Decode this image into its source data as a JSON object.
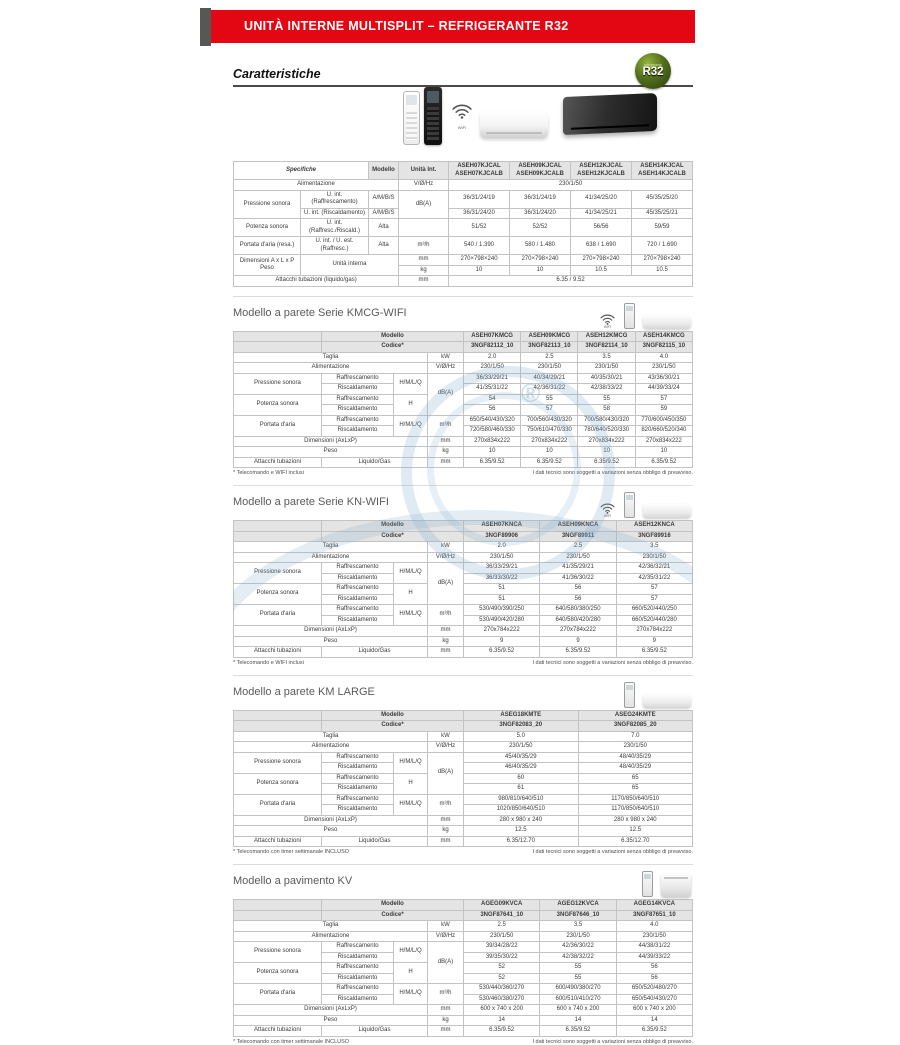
{
  "banner": {
    "title": "UNITÀ INTERNE MULTISPLIT – REFRIGERANTE R32"
  },
  "page": {
    "heading": "Caratteristiche"
  },
  "badge": {
    "small": "refrigerante",
    "big": "R32",
    "color": "#4a6418"
  },
  "strings": {
    "wifi_label": "WIFI",
    "disclaimer": "I dati tecnici sono soggetti a variazioni senza obbligo di preavviso."
  },
  "colors": {
    "banner_red": "#e30613",
    "model_red": "#b50d1c",
    "separator_red": "#a81320",
    "header_gray": "#e4e4e4"
  },
  "specifiche": {
    "title": "Specifiche",
    "labels": {
      "modello": "Modello",
      "unita": "Unità Int.",
      "alimentazione": "Alimentazione",
      "vhz": "V/Ø/Hz",
      "pressione": "Pressione sonora",
      "raffrescamento_int": "U. int. (Raffrescamento)",
      "riscaldamento_int": "U. int. (Riscaldamento)",
      "ambs": "A/M/B/S",
      "dba": "dB(A)",
      "potenza": "Potenza sonora",
      "raffresc_riscald": "U. int. (Raffresc./Riscald.)",
      "alta": "Alta",
      "portata": "Portata d'aria (resa.)",
      "int_est_raffresc": "U. int. / U. est. (Raffresc.)",
      "m3h": "m³/h",
      "dim_peso": "Dimensioni  A x L x P\nPeso",
      "unita_interna": "Unità interna",
      "mm": "mm",
      "kg": "kg",
      "attacchi": "Attacchi tubazioni (liquido/gas)"
    },
    "models": [
      [
        "ASEH07KJCAL",
        "ASEH07KJCALB"
      ],
      [
        "ASEH09KJCAL",
        "ASEH09KJCALB"
      ],
      [
        "ASEH12KJCAL",
        "ASEH12KJCALB"
      ],
      [
        "ASEH14KJCAL",
        "ASEH14KJCALB"
      ]
    ],
    "values": {
      "alimentazione": "230/1/50",
      "pressione_raffrescamento": [
        "36/31/24/19",
        "36/31/24/19",
        "41/34/25/20",
        "45/35/25/20"
      ],
      "pressione_riscaldamento": [
        "36/31/24/20",
        "36/31/24/20",
        "41/34/25/21",
        "45/35/25/21"
      ],
      "potenza": [
        "51/52",
        "52/52",
        "56/56",
        "59/59"
      ],
      "portata": [
        "540 / 1.390",
        "580 / 1.480",
        "638 / 1.690",
        "720 / 1.690"
      ],
      "dimensioni": [
        "270×798×240",
        "270×798×240",
        "270×798×240",
        "270×798×240"
      ],
      "peso": [
        "10",
        "10",
        "10.5",
        "10.5"
      ],
      "attacchi": "6.35 / 9.52"
    }
  },
  "table_labels": {
    "modello": "Modello",
    "codice": "Codice*",
    "taglia": "Taglia",
    "kw": "kW",
    "alimentazione": "Alimentazione",
    "vhz": "V/Ø/Hz",
    "pressione": "Pressione sonora",
    "potenza": "Potenza sonora",
    "portata": "Portata d'aria",
    "raffrescamento": "Raffrescamento",
    "riscaldamento": "Riscaldamento",
    "hmlq": "H/M/L/Q",
    "h": "H",
    "dba": "dB(A)",
    "m3h": "m³/h",
    "dimensioni": "Dimensioni (AxLxP)",
    "mm": "mm",
    "peso": "Peso",
    "kg": "kg",
    "attacchi": "Attacchi tubazioni",
    "liquido_gas": "Liquido/Gas"
  },
  "sections": [
    {
      "title": "Modello a parete Serie KMCG-WIFI",
      "icons": [
        "wifi",
        "remote",
        "wall"
      ],
      "models": [
        "ASEH07KMCG",
        "ASEH09KMCG",
        "ASEH12KMCG",
        "ASEH14KMCG"
      ],
      "codes": [
        "3NGF82112_10",
        "3NGF82113_10",
        "3NGF82114_10",
        "3NGF82115_10"
      ],
      "values": {
        "taglia": [
          "2.0",
          "2.5",
          "3.5",
          "4.0"
        ],
        "alimentazione": [
          "230/1/50",
          "230/1/50",
          "230/1/50",
          "230/1/50"
        ],
        "pressione_raffrescamento": [
          "36/33/29/21",
          "40/34/29/21",
          "40/35/30/21",
          "43/36/30/21"
        ],
        "pressione_riscaldamento": [
          "41/35/31/22",
          "42/36/31/22",
          "42/38/33/22",
          "44/39/33/24"
        ],
        "potenza_raffrescamento": [
          "54",
          "55",
          "55",
          "57"
        ],
        "potenza_riscaldamento": [
          "56",
          "57",
          "58",
          "59"
        ],
        "portata_raffrescamento": [
          "650/540/430/320",
          "700/560/430/320",
          "700/580/430/320",
          "770/600/450/350"
        ],
        "portata_riscaldamento": [
          "720/580/460/330",
          "750/610/470/330",
          "780/640/520/330",
          "820/660/520/340"
        ],
        "dimensioni": [
          "270x834x222",
          "270x834x222",
          "270x834x222",
          "270x834x222"
        ],
        "peso": [
          "10",
          "10",
          "10",
          "10"
        ],
        "attacchi": [
          "6.35/9.52",
          "6.35/9.52",
          "6.35/9.52",
          "6.35/9.52"
        ]
      },
      "footnote": "* Telecomando e WIFI inclusi"
    },
    {
      "title": "Modello a parete Serie KN-WIFI",
      "icons": [
        "wifi",
        "remote",
        "wall"
      ],
      "models": [
        "ASEH07KNCA",
        "ASEH09KNCA",
        "ASEH12KNCA"
      ],
      "codes": [
        "3NGF89906",
        "3NGF89911",
        "3NGF89916"
      ],
      "values": {
        "taglia": [
          "2.0",
          "2.5",
          "3.5"
        ],
        "alimentazione": [
          "230/1/50",
          "230/1/50",
          "230/1/50"
        ],
        "pressione_raffrescamento": [
          "36/33/29/21",
          "41/35/29/21",
          "42/36/32/21"
        ],
        "pressione_riscaldamento": [
          "36/33/30/22",
          "41/36/30/22",
          "42/35/31/22"
        ],
        "potenza_raffrescamento": [
          "51",
          "56",
          "57"
        ],
        "potenza_riscaldamento": [
          "51",
          "56",
          "57"
        ],
        "portata_raffrescamento": [
          "530/490/390/250",
          "640/580/380/250",
          "660/520/440/250"
        ],
        "portata_riscaldamento": [
          "530/490/420/280",
          "640/580/420/280",
          "660/520/440/280"
        ],
        "dimensioni": [
          "270x784x222",
          "270x784x222",
          "270x784x222"
        ],
        "peso": [
          "9",
          "9",
          "9"
        ],
        "attacchi": [
          "6.35/9.52",
          "6.35/9.52",
          "6.35/9.52"
        ]
      },
      "footnote": "* Telecomando e WIFI inclusi"
    },
    {
      "title": "Modello a parete KM LARGE",
      "icons": [
        "remote",
        "wall"
      ],
      "models": [
        "ASEG18KMTE",
        "ASEG24KMTE"
      ],
      "codes": [
        "3NGF82083_20",
        "3NGF82085_20"
      ],
      "values": {
        "taglia": [
          "5.0",
          "7.0"
        ],
        "alimentazione": [
          "230/1/50",
          "230/1/50"
        ],
        "pressione_raffrescamento": [
          "45/40/35/29",
          "48/40/35/29"
        ],
        "pressione_riscaldamento": [
          "46/40/35/29",
          "48/40/35/29"
        ],
        "potenza_raffrescamento": [
          "60",
          "65"
        ],
        "potenza_riscaldamento": [
          "61",
          "65"
        ],
        "portata_raffrescamento": [
          "980/810/640/510",
          "1170/850/640/510"
        ],
        "portata_riscaldamento": [
          "1020/850/640/510",
          "1170/850/640/510"
        ],
        "dimensioni": [
          "280 x 980 x 240",
          "280 x 980 x 240"
        ],
        "peso": [
          "12.5",
          "12.5"
        ],
        "attacchi": [
          "6.35/12.70",
          "6.35/12.70"
        ]
      },
      "footnote": "* Telecomando con timer settimanale INCLUSO"
    },
    {
      "title": "Modello a pavimento KV",
      "icons": [
        "remote",
        "floor"
      ],
      "models": [
        "AGEG09KVCA",
        "AGEG12KVCA",
        "AGEG14KVCA"
      ],
      "codes": [
        "3NGF87641_10",
        "3NGF87646_10",
        "3NGF87651_10"
      ],
      "values": {
        "taglia": [
          "2.5",
          "3.5",
          "4.0"
        ],
        "alimentazione": [
          "230/1/50",
          "230/1/50",
          "230/1/50"
        ],
        "pressione_raffrescamento": [
          "39/34/28/22",
          "42/36/30/22",
          "44/38/31/22"
        ],
        "pressione_riscaldamento": [
          "39/35/30/22",
          "42/38/32/22",
          "44/39/33/22"
        ],
        "potenza_raffrescamento": [
          "52",
          "55",
          "56"
        ],
        "potenza_riscaldamento": [
          "52",
          "55",
          "56"
        ],
        "portata_raffrescamento": [
          "530/440/360/270",
          "600/490/380/270",
          "650/520/480/270"
        ],
        "portata_riscaldamento": [
          "530/460/380/270",
          "600/510/410/270",
          "650/540/430/270"
        ],
        "dimensioni": [
          "600 x 740 x 200",
          "600 x 740 x 200",
          "600 x 740 x 200"
        ],
        "peso": [
          "14",
          "14",
          "14"
        ],
        "attacchi": [
          "6.35/9.52",
          "6.35/9.52",
          "6.35/9.52"
        ]
      },
      "footnote": "* Telecomando con timer settimanale INCLUSO"
    }
  ]
}
